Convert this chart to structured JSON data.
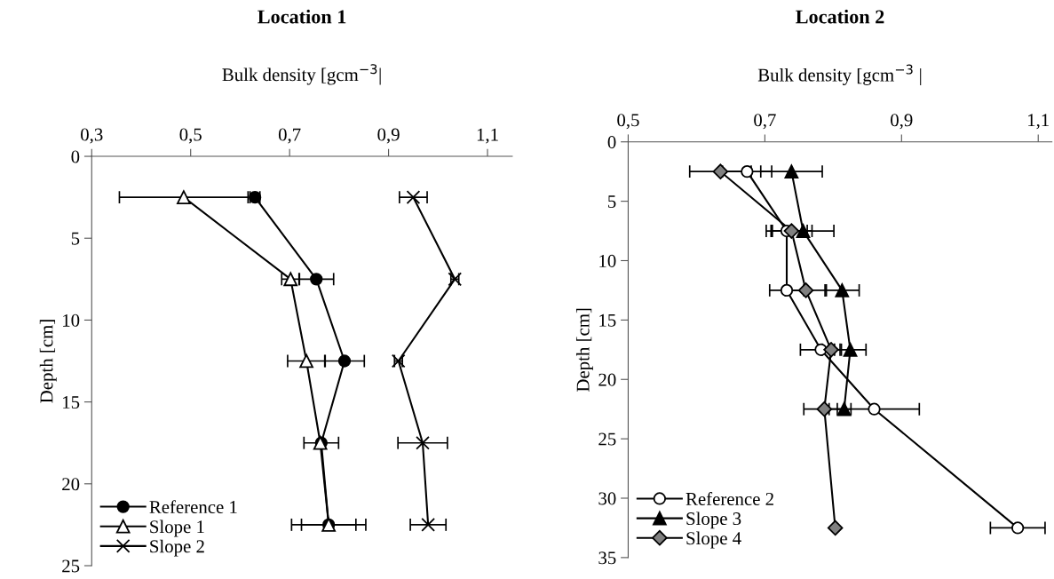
{
  "chart_data": [
    {
      "type": "line",
      "title": "Location 1",
      "xlabel": "Bulk density [gcm$^{−3}$|",
      "ylabel": "Depth [cm]",
      "xlim": [
        0.3,
        1.15
      ],
      "xticks": [
        {
          "value": 0.3,
          "label": "0,3"
        },
        {
          "value": 0.5,
          "label": "0,5"
        },
        {
          "value": 0.7,
          "label": "0,7"
        },
        {
          "value": 0.9,
          "label": "0,9"
        },
        {
          "value": 1.1,
          "label": "1,1"
        }
      ],
      "ylim": [
        25,
        0
      ],
      "yticks": [
        0,
        5,
        10,
        15,
        20,
        25
      ],
      "legend": "bottom left",
      "grid": false,
      "series": [
        {
          "name": "Reference 1",
          "color": "#000000",
          "marker": "circle",
          "x": [
            0.63,
            0.754,
            0.811,
            0.764,
            0.779
          ],
          "values": [
            2.5,
            7.5,
            12.5,
            17.5,
            22.5
          ],
          "xerrors": [
            0.01,
            0.035,
            0.04,
            0.035,
            0.055
          ]
        },
        {
          "name": "Slope 1",
          "color": "#ffffff",
          "marker": "triangle",
          "x": [
            0.486,
            0.702,
            0.734,
            0.762,
            0.779
          ],
          "values": [
            2.5,
            7.5,
            12.5,
            17.5,
            22.5
          ],
          "xerrors": [
            0.13,
            0.018,
            0.038,
            null,
            0.075
          ]
        },
        {
          "name": "Slope 2",
          "color": "#000000",
          "marker": "cross",
          "x": [
            0.95,
            1.034,
            0.92,
            0.969,
            0.98
          ],
          "values": [
            2.5,
            7.5,
            12.5,
            17.5,
            22.5
          ],
          "xerrors": [
            0.028,
            0.008,
            0.008,
            0.05,
            0.036
          ]
        }
      ]
    },
    {
      "type": "line",
      "title": "Location 2",
      "xlabel": "Bulk density [gcm$^{−3}$ |",
      "ylabel": "Depth [cm]",
      "xlim": [
        0.5,
        1.12
      ],
      "xticks": [
        {
          "value": 0.5,
          "label": "0,5"
        },
        {
          "value": 0.7,
          "label": "0,7"
        },
        {
          "value": 0.9,
          "label": "0,9"
        },
        {
          "value": 1.1,
          "label": "1,1"
        }
      ],
      "ylim": [
        35,
        0
      ],
      "yticks": [
        0,
        5,
        10,
        15,
        20,
        25,
        30,
        35
      ],
      "legend": "bottom left",
      "grid": false,
      "series": [
        {
          "name": "Reference 2",
          "color": "#ffffff",
          "marker": "circle",
          "x": [
            0.674,
            0.732,
            0.732,
            0.782,
            0.86,
            1.07
          ],
          "values": [
            2.5,
            7.5,
            12.5,
            17.5,
            22.5,
            32.5
          ],
          "xerrors": [
            0.036,
            0.03,
            0.025,
            0.03,
            0.066,
            0.04
          ]
        },
        {
          "name": "Slope 3",
          "color": "#000000",
          "marker": "triangle",
          "x": [
            0.739,
            0.756,
            0.813,
            0.825,
            0.816
          ],
          "values": [
            2.5,
            7.5,
            12.5,
            17.5,
            22.5
          ],
          "xerrors": [
            0.045,
            0.045,
            0.025,
            0.023,
            0.01
          ]
        },
        {
          "name": "Slope 4",
          "color": "#808080",
          "marker": "diamond",
          "x": [
            0.635,
            0.739,
            0.76,
            0.797,
            0.787,
            0.803
          ],
          "values": [
            2.5,
            7.5,
            12.5,
            17.5,
            22.5,
            32.5
          ],
          "xerrors": [
            0.045,
            0.03,
            0.03,
            0.013,
            0.03,
            null
          ]
        }
      ]
    }
  ]
}
